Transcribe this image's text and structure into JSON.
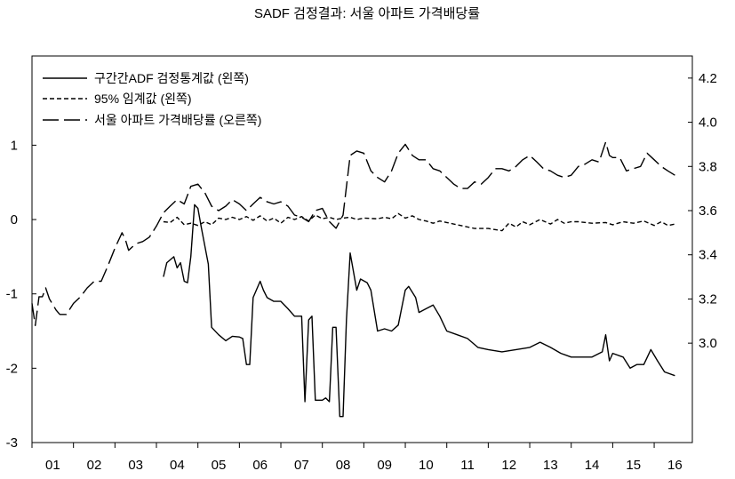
{
  "chart_data": {
    "type": "line",
    "title": "SADF 검정결과: 서울 아파트 가격배당률",
    "x": {
      "range": [
        2001.0,
        2016.92
      ],
      "tick_labels": [
        "01",
        "02",
        "03",
        "04",
        "05",
        "06",
        "07",
        "08",
        "09",
        "10",
        "11",
        "12",
        "13",
        "14",
        "15",
        "16"
      ]
    },
    "y_left": {
      "range": [
        -3,
        2.2
      ],
      "ticks": [
        -3,
        -2,
        -1,
        0,
        1
      ],
      "tick_labels": [
        "-3",
        "-2",
        "-1",
        "0",
        "1"
      ]
    },
    "y_right": {
      "range": [
        2.55,
        4.3
      ],
      "ticks": [
        3.0,
        3.2,
        3.4,
        3.6,
        3.8,
        4.0,
        4.2
      ],
      "tick_labels": [
        "3.0",
        "3.2",
        "3.4",
        "3.6",
        "3.8",
        "4.0",
        "4.2"
      ]
    },
    "legend": {
      "placement": "top-left",
      "entries": [
        "구간간ADF 검정통계값 (왼쪽)",
        "95% 임계값 (왼쪽)",
        "서울 아파트 가격배당률 (오른쪽)"
      ]
    },
    "series": [
      {
        "name": "구간간ADF 검정통계값 (왼쪽)",
        "axis": "left",
        "style": "solid",
        "points": [
          [
            2004.17,
            -0.77
          ],
          [
            2004.25,
            -0.58
          ],
          [
            2004.42,
            -0.5
          ],
          [
            2004.5,
            -0.65
          ],
          [
            2004.58,
            -0.58
          ],
          [
            2004.67,
            -0.83
          ],
          [
            2004.75,
            -0.85
          ],
          [
            2004.83,
            -0.5
          ],
          [
            2004.92,
            0.2
          ],
          [
            2005.0,
            0.15
          ],
          [
            2005.08,
            -0.1
          ],
          [
            2005.25,
            -0.6
          ],
          [
            2005.33,
            -1.45
          ],
          [
            2005.5,
            -1.55
          ],
          [
            2005.67,
            -1.63
          ],
          [
            2005.83,
            -1.57
          ],
          [
            2006.0,
            -1.58
          ],
          [
            2006.08,
            -1.6
          ],
          [
            2006.17,
            -1.95
          ],
          [
            2006.25,
            -1.95
          ],
          [
            2006.33,
            -1.05
          ],
          [
            2006.5,
            -0.83
          ],
          [
            2006.58,
            -0.95
          ],
          [
            2006.67,
            -1.05
          ],
          [
            2006.83,
            -1.1
          ],
          [
            2007.0,
            -1.1
          ],
          [
            2007.17,
            -1.2
          ],
          [
            2007.33,
            -1.3
          ],
          [
            2007.5,
            -1.3
          ],
          [
            2007.58,
            -2.45
          ],
          [
            2007.67,
            -1.35
          ],
          [
            2007.75,
            -1.3
          ],
          [
            2007.83,
            -2.43
          ],
          [
            2008.0,
            -2.43
          ],
          [
            2008.08,
            -2.4
          ],
          [
            2008.17,
            -2.45
          ],
          [
            2008.25,
            -1.45
          ],
          [
            2008.33,
            -1.45
          ],
          [
            2008.42,
            -2.65
          ],
          [
            2008.5,
            -2.65
          ],
          [
            2008.58,
            -1.35
          ],
          [
            2008.67,
            -0.45
          ],
          [
            2008.83,
            -0.95
          ],
          [
            2008.92,
            -0.8
          ],
          [
            2009.08,
            -0.85
          ],
          [
            2009.17,
            -0.95
          ],
          [
            2009.33,
            -1.5
          ],
          [
            2009.5,
            -1.47
          ],
          [
            2009.67,
            -1.5
          ],
          [
            2009.83,
            -1.42
          ],
          [
            2010.0,
            -0.95
          ],
          [
            2010.08,
            -0.9
          ],
          [
            2010.25,
            -1.05
          ],
          [
            2010.33,
            -1.25
          ],
          [
            2010.5,
            -1.2
          ],
          [
            2010.67,
            -1.15
          ],
          [
            2010.83,
            -1.3
          ],
          [
            2011.0,
            -1.5
          ],
          [
            2011.25,
            -1.55
          ],
          [
            2011.5,
            -1.6
          ],
          [
            2011.75,
            -1.72
          ],
          [
            2012.0,
            -1.75
          ],
          [
            2012.33,
            -1.78
          ],
          [
            2012.67,
            -1.75
          ],
          [
            2013.0,
            -1.72
          ],
          [
            2013.25,
            -1.65
          ],
          [
            2013.5,
            -1.72
          ],
          [
            2013.75,
            -1.8
          ],
          [
            2014.0,
            -1.85
          ],
          [
            2014.5,
            -1.85
          ],
          [
            2014.75,
            -1.78
          ],
          [
            2014.83,
            -1.55
          ],
          [
            2014.92,
            -1.9
          ],
          [
            2015.0,
            -1.8
          ],
          [
            2015.25,
            -1.85
          ],
          [
            2015.42,
            -2.0
          ],
          [
            2015.58,
            -1.95
          ],
          [
            2015.75,
            -1.95
          ],
          [
            2015.92,
            -1.75
          ],
          [
            2016.08,
            -1.9
          ],
          [
            2016.25,
            -2.05
          ],
          [
            2016.5,
            -2.1
          ]
        ]
      },
      {
        "name": "95% 임계값 (왼쪽)",
        "axis": "left",
        "style": "dashed",
        "points": [
          [
            2004.17,
            -0.03
          ],
          [
            2004.33,
            -0.04
          ],
          [
            2004.5,
            0.03
          ],
          [
            2004.67,
            -0.07
          ],
          [
            2004.83,
            -0.05
          ],
          [
            2005.0,
            -0.08
          ],
          [
            2005.17,
            -0.03
          ],
          [
            2005.33,
            -0.07
          ],
          [
            2005.5,
            0.02
          ],
          [
            2005.67,
            0.0
          ],
          [
            2005.83,
            0.03
          ],
          [
            2006.0,
            0.0
          ],
          [
            2006.17,
            0.04
          ],
          [
            2006.33,
            -0.01
          ],
          [
            2006.5,
            0.05
          ],
          [
            2006.67,
            -0.02
          ],
          [
            2006.83,
            0.02
          ],
          [
            2007.0,
            -0.05
          ],
          [
            2007.17,
            0.03
          ],
          [
            2007.33,
            0.0
          ],
          [
            2007.5,
            0.04
          ],
          [
            2007.67,
            -0.02
          ],
          [
            2007.83,
            0.06
          ],
          [
            2008.0,
            0.01
          ],
          [
            2008.17,
            0.03
          ],
          [
            2008.33,
            0.0
          ],
          [
            2008.5,
            0.02
          ],
          [
            2008.67,
            0.03
          ],
          [
            2008.83,
            0.0
          ],
          [
            2009.0,
            0.02
          ],
          [
            2009.33,
            0.01
          ],
          [
            2009.5,
            0.03
          ],
          [
            2009.67,
            0.01
          ],
          [
            2009.83,
            0.08
          ],
          [
            2010.0,
            0.02
          ],
          [
            2010.17,
            0.05
          ],
          [
            2010.33,
            0.0
          ],
          [
            2010.5,
            -0.02
          ],
          [
            2010.67,
            -0.05
          ],
          [
            2010.83,
            -0.02
          ],
          [
            2011.0,
            -0.04
          ],
          [
            2011.33,
            -0.08
          ],
          [
            2011.67,
            -0.12
          ],
          [
            2012.0,
            -0.12
          ],
          [
            2012.33,
            -0.15
          ],
          [
            2012.5,
            -0.05
          ],
          [
            2012.67,
            -0.1
          ],
          [
            2012.83,
            -0.03
          ],
          [
            2013.0,
            -0.07
          ],
          [
            2013.25,
            0.0
          ],
          [
            2013.5,
            -0.06
          ],
          [
            2013.67,
            0.0
          ],
          [
            2013.83,
            -0.05
          ],
          [
            2014.0,
            -0.03
          ],
          [
            2014.17,
            -0.03
          ],
          [
            2014.5,
            -0.05
          ],
          [
            2014.83,
            -0.04
          ],
          [
            2015.0,
            -0.07
          ],
          [
            2015.25,
            -0.03
          ],
          [
            2015.5,
            -0.05
          ],
          [
            2015.75,
            -0.02
          ],
          [
            2016.0,
            -0.08
          ],
          [
            2016.17,
            -0.03
          ],
          [
            2016.33,
            -0.08
          ],
          [
            2016.5,
            -0.06
          ]
        ]
      },
      {
        "name": "서울 아파트 가격배당률 (오른쪽)",
        "axis": "right",
        "style": "longdash",
        "points": [
          [
            2001.0,
            3.18
          ],
          [
            2001.08,
            3.08
          ],
          [
            2001.17,
            3.21
          ],
          [
            2001.25,
            3.21
          ],
          [
            2001.33,
            3.25
          ],
          [
            2001.42,
            3.2
          ],
          [
            2001.58,
            3.15
          ],
          [
            2001.67,
            3.13
          ],
          [
            2001.83,
            3.13
          ],
          [
            2002.0,
            3.18
          ],
          [
            2002.17,
            3.21
          ],
          [
            2002.33,
            3.25
          ],
          [
            2002.5,
            3.28
          ],
          [
            2002.67,
            3.28
          ],
          [
            2002.83,
            3.35
          ],
          [
            2003.0,
            3.43
          ],
          [
            2003.17,
            3.5
          ],
          [
            2003.25,
            3.47
          ],
          [
            2003.33,
            3.42
          ],
          [
            2003.5,
            3.45
          ],
          [
            2003.67,
            3.46
          ],
          [
            2003.83,
            3.48
          ],
          [
            2004.0,
            3.53
          ],
          [
            2004.17,
            3.59
          ],
          [
            2004.33,
            3.62
          ],
          [
            2004.5,
            3.65
          ],
          [
            2004.67,
            3.63
          ],
          [
            2004.83,
            3.71
          ],
          [
            2005.0,
            3.72
          ],
          [
            2005.17,
            3.68
          ],
          [
            2005.33,
            3.62
          ],
          [
            2005.5,
            3.6
          ],
          [
            2005.67,
            3.62
          ],
          [
            2005.83,
            3.65
          ],
          [
            2006.0,
            3.63
          ],
          [
            2006.17,
            3.6
          ],
          [
            2006.33,
            3.63
          ],
          [
            2006.5,
            3.66
          ],
          [
            2006.67,
            3.64
          ],
          [
            2006.83,
            3.63
          ],
          [
            2007.0,
            3.64
          ],
          [
            2007.17,
            3.62
          ],
          [
            2007.33,
            3.58
          ],
          [
            2007.5,
            3.57
          ],
          [
            2007.67,
            3.55
          ],
          [
            2007.83,
            3.6
          ],
          [
            2008.0,
            3.61
          ],
          [
            2008.17,
            3.55
          ],
          [
            2008.33,
            3.52
          ],
          [
            2008.5,
            3.58
          ],
          [
            2008.67,
            3.85
          ],
          [
            2008.83,
            3.87
          ],
          [
            2009.0,
            3.86
          ],
          [
            2009.17,
            3.78
          ],
          [
            2009.33,
            3.75
          ],
          [
            2009.5,
            3.73
          ],
          [
            2009.67,
            3.78
          ],
          [
            2009.83,
            3.86
          ],
          [
            2010.0,
            3.9
          ],
          [
            2010.17,
            3.85
          ],
          [
            2010.33,
            3.83
          ],
          [
            2010.5,
            3.83
          ],
          [
            2010.67,
            3.79
          ],
          [
            2010.83,
            3.78
          ],
          [
            2011.0,
            3.75
          ],
          [
            2011.17,
            3.72
          ],
          [
            2011.33,
            3.7
          ],
          [
            2011.5,
            3.7
          ],
          [
            2011.67,
            3.73
          ],
          [
            2011.83,
            3.72
          ],
          [
            2012.0,
            3.75
          ],
          [
            2012.17,
            3.79
          ],
          [
            2012.33,
            3.79
          ],
          [
            2012.5,
            3.78
          ],
          [
            2012.67,
            3.8
          ],
          [
            2012.83,
            3.83
          ],
          [
            2013.0,
            3.85
          ],
          [
            2013.17,
            3.82
          ],
          [
            2013.33,
            3.79
          ],
          [
            2013.5,
            3.78
          ],
          [
            2013.67,
            3.76
          ],
          [
            2013.83,
            3.75
          ],
          [
            2014.0,
            3.76
          ],
          [
            2014.17,
            3.8
          ],
          [
            2014.33,
            3.81
          ],
          [
            2014.5,
            3.83
          ],
          [
            2014.67,
            3.82
          ],
          [
            2014.83,
            3.91
          ],
          [
            2014.92,
            3.85
          ],
          [
            2015.0,
            3.84
          ],
          [
            2015.17,
            3.84
          ],
          [
            2015.33,
            3.78
          ],
          [
            2015.5,
            3.79
          ],
          [
            2015.67,
            3.8
          ],
          [
            2015.83,
            3.86
          ],
          [
            2016.0,
            3.83
          ],
          [
            2016.17,
            3.8
          ],
          [
            2016.33,
            3.78
          ],
          [
            2016.5,
            3.76
          ]
        ]
      }
    ]
  }
}
